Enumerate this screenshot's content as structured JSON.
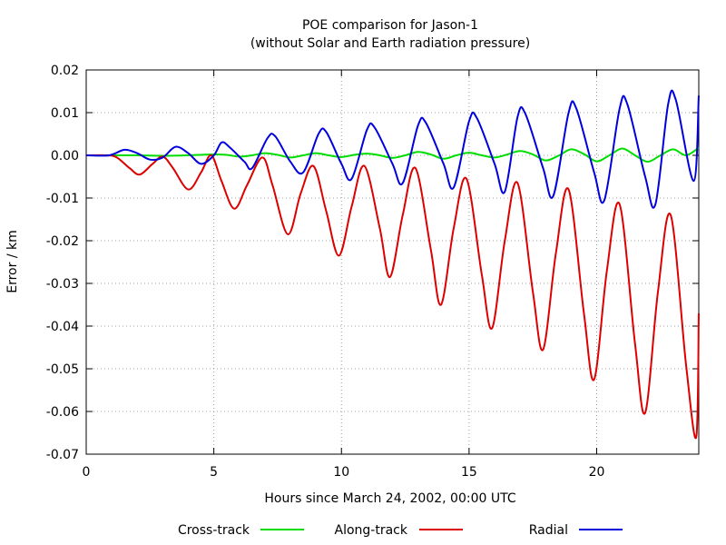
{
  "chart_data": {
    "type": "line",
    "title": "POE comparison for Jason-1",
    "subtitle": "(without Solar and Earth radiation pressure)",
    "xlabel": "Hours since March 24, 2002, 00:00 UTC",
    "ylabel": "Error / km",
    "xlim": [
      0,
      24
    ],
    "ylim": [
      -0.07,
      0.02
    ],
    "x_ticks": [
      0,
      5,
      10,
      15,
      20
    ],
    "x_tick_labels": [
      "0",
      "5",
      "10",
      "15",
      "20"
    ],
    "y_ticks": [
      0.02,
      0.01,
      0.0,
      -0.01,
      -0.02,
      -0.03,
      -0.04,
      -0.05,
      -0.06,
      -0.07
    ],
    "y_tick_labels": [
      "0.02",
      "0.01",
      "0.00",
      "-0.01",
      "-0.02",
      "-0.03",
      "-0.04",
      "-0.05",
      "-0.06",
      "-0.07"
    ],
    "grid": true,
    "legend_position": "bottom",
    "series": [
      {
        "name": "Cross-track",
        "color": "#00dd00",
        "points": [
          [
            0,
            0
          ],
          [
            1,
            0
          ],
          [
            2,
            0
          ],
          [
            3,
            -0.0001
          ],
          [
            4,
            0
          ],
          [
            5,
            0.0002
          ],
          [
            5.5,
            0.0001
          ],
          [
            6,
            -0.0003
          ],
          [
            6.5,
            0
          ],
          [
            7,
            0.0005
          ],
          [
            7.5,
            0.0001
          ],
          [
            8,
            -0.0005
          ],
          [
            8.5,
            0
          ],
          [
            9,
            0.0005
          ],
          [
            9.5,
            0
          ],
          [
            10,
            -0.0004
          ],
          [
            10.5,
            0.0001
          ],
          [
            11,
            0.0004
          ],
          [
            11.5,
            0
          ],
          [
            12,
            -0.0006
          ],
          [
            12.5,
            0
          ],
          [
            13,
            0.0008
          ],
          [
            13.5,
            0.0002
          ],
          [
            14,
            -0.0008
          ],
          [
            14.5,
            0
          ],
          [
            15,
            0.0006
          ],
          [
            15.5,
            0
          ],
          [
            16,
            -0.0005
          ],
          [
            16.5,
            0.0002
          ],
          [
            17,
            0.001
          ],
          [
            17.5,
            0.0002
          ],
          [
            18,
            -0.0012
          ],
          [
            18.5,
            -0.0001
          ],
          [
            19,
            0.0014
          ],
          [
            19.5,
            0.0003
          ],
          [
            20,
            -0.0014
          ],
          [
            20.5,
            0
          ],
          [
            21,
            0.0016
          ],
          [
            21.5,
            0
          ],
          [
            22,
            -0.0015
          ],
          [
            22.5,
            0
          ],
          [
            23,
            0.0014
          ],
          [
            23.5,
            0
          ],
          [
            24,
            0.0018
          ]
        ]
      },
      {
        "name": "Along-track",
        "color": "#dd0000",
        "points": [
          [
            0,
            0
          ],
          [
            0.8,
            0
          ],
          [
            1.2,
            -0.0005
          ],
          [
            1.7,
            -0.003
          ],
          [
            2.1,
            -0.0045
          ],
          [
            2.6,
            -0.002
          ],
          [
            3,
            -0.0003
          ],
          [
            3.4,
            -0.003
          ],
          [
            4,
            -0.008
          ],
          [
            4.5,
            -0.004
          ],
          [
            4.9,
            0
          ],
          [
            5.3,
            -0.006
          ],
          [
            5.8,
            -0.0125
          ],
          [
            6.3,
            -0.007
          ],
          [
            6.9,
            -0.0005
          ],
          [
            7.3,
            -0.007
          ],
          [
            7.9,
            -0.0185
          ],
          [
            8.4,
            -0.009
          ],
          [
            8.9,
            -0.0025
          ],
          [
            9.4,
            -0.013
          ],
          [
            9.9,
            -0.0235
          ],
          [
            10.4,
            -0.012
          ],
          [
            10.9,
            -0.0025
          ],
          [
            11.5,
            -0.017
          ],
          [
            11.9,
            -0.0285
          ],
          [
            12.4,
            -0.014
          ],
          [
            12.9,
            -0.003
          ],
          [
            13.5,
            -0.022
          ],
          [
            13.9,
            -0.035
          ],
          [
            14.4,
            -0.017
          ],
          [
            14.9,
            -0.0055
          ],
          [
            15.5,
            -0.028
          ],
          [
            15.9,
            -0.0405
          ],
          [
            16.4,
            -0.02
          ],
          [
            16.9,
            -0.0065
          ],
          [
            17.5,
            -0.032
          ],
          [
            17.9,
            -0.0455
          ],
          [
            18.4,
            -0.023
          ],
          [
            18.9,
            -0.008
          ],
          [
            19.5,
            -0.037
          ],
          [
            19.9,
            -0.0525
          ],
          [
            20.4,
            -0.027
          ],
          [
            20.9,
            -0.0115
          ],
          [
            21.5,
            -0.044
          ],
          [
            21.9,
            -0.0603
          ],
          [
            22.4,
            -0.032
          ],
          [
            22.9,
            -0.014
          ],
          [
            23.5,
            -0.049
          ],
          [
            23.9,
            -0.066
          ],
          [
            24,
            -0.037
          ]
        ]
      },
      {
        "name": "Radial",
        "color": "#0000dd",
        "points": [
          [
            0,
            0
          ],
          [
            0.9,
            0
          ],
          [
            1.5,
            0.0013
          ],
          [
            2,
            0.0005
          ],
          [
            2.5,
            -0.001
          ],
          [
            3,
            -0.0005
          ],
          [
            3.5,
            0.002
          ],
          [
            4,
            0.0005
          ],
          [
            4.5,
            -0.002
          ],
          [
            5,
            0
          ],
          [
            5.3,
            0.003
          ],
          [
            5.6,
            0.002
          ],
          [
            6.2,
            -0.0015
          ],
          [
            6.5,
            -0.003
          ],
          [
            7.1,
            0.004
          ],
          [
            7.4,
            0.0045
          ],
          [
            8,
            -0.0015
          ],
          [
            8.5,
            -0.004
          ],
          [
            9.1,
            0.005
          ],
          [
            9.4,
            0.0055
          ],
          [
            10,
            -0.002
          ],
          [
            10.4,
            -0.0055
          ],
          [
            11,
            0.006
          ],
          [
            11.3,
            0.0065
          ],
          [
            12,
            -0.002
          ],
          [
            12.4,
            -0.0065
          ],
          [
            13,
            0.007
          ],
          [
            13.3,
            0.0077
          ],
          [
            14,
            -0.002
          ],
          [
            14.4,
            -0.0075
          ],
          [
            15,
            0.008
          ],
          [
            15.3,
            0.0088
          ],
          [
            16,
            -0.002
          ],
          [
            16.4,
            -0.0085
          ],
          [
            16.9,
            0.009
          ],
          [
            17.2,
            0.0098
          ],
          [
            17.9,
            -0.003
          ],
          [
            18.3,
            -0.0095
          ],
          [
            18.9,
            0.01
          ],
          [
            19.2,
            0.011
          ],
          [
            19.9,
            -0.004
          ],
          [
            20.3,
            -0.0105
          ],
          [
            20.9,
            0.011
          ],
          [
            21.2,
            0.012
          ],
          [
            21.9,
            -0.005
          ],
          [
            22.3,
            -0.0115
          ],
          [
            22.8,
            0.012
          ],
          [
            23.1,
            0.013
          ],
          [
            23.8,
            -0.006
          ],
          [
            24,
            0.014
          ]
        ]
      }
    ]
  }
}
